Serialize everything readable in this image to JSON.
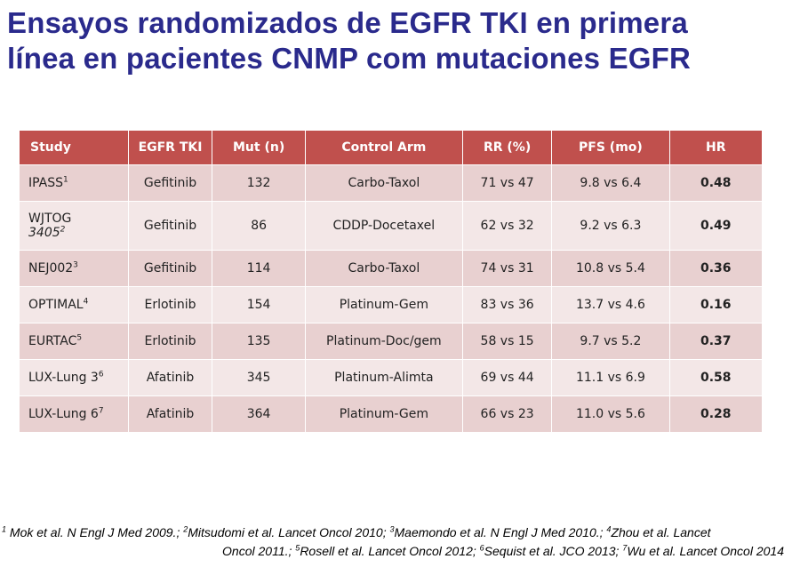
{
  "title": {
    "line1": "Ensayos randomizados de EGFR TKI en primera",
    "line2": "línea en pacientes CNMP com mutaciones EGFR"
  },
  "table": {
    "headers": [
      "Study",
      "EGFR TKI",
      "Mut (n)",
      "Control Arm",
      "RR  (%)",
      "PFS (mo)",
      "HR"
    ],
    "rows": [
      {
        "study": "IPASS",
        "study2": "",
        "ref": "1",
        "tki": "Gefitinib",
        "mut": "132",
        "control": "Carbo-Taxol",
        "rr": "71 vs 47",
        "pfs": "9.8 vs 6.4",
        "hr": "0.48"
      },
      {
        "study": "WJTOG",
        "study2": "3405",
        "ref": "2",
        "tki": "Gefitinib",
        "mut": "86",
        "control": "CDDP-Docetaxel",
        "rr": "62 vs 32",
        "pfs": "9.2 vs 6.3",
        "hr": "0.49"
      },
      {
        "study": "NEJ002",
        "study2": "",
        "ref": "3",
        "tki": "Gefitinib",
        "mut": "114",
        "control": "Carbo-Taxol",
        "rr": "74 vs 31",
        "pfs": "10.8 vs 5.4",
        "hr": "0.36"
      },
      {
        "study": "OPTIMAL",
        "study2": "",
        "ref": "4",
        "tki": "Erlotinib",
        "mut": "154",
        "control": "Platinum-Gem",
        "rr": "83 vs 36",
        "pfs": "13.7 vs 4.6",
        "hr": "0.16"
      },
      {
        "study": "EURTAC",
        "study2": "",
        "ref": "5",
        "tki": "Erlotinib",
        "mut": "135",
        "control": "Platinum-Doc/gem",
        "rr": "58 vs 15",
        "pfs": "9.7 vs 5.2",
        "hr": "0.37"
      },
      {
        "study": "LUX-Lung 3",
        "study2": "",
        "ref": "6",
        "tki": "Afatinib",
        "mut": "345",
        "control": "Platinum-Alimta",
        "rr": "69 vs 44",
        "pfs": "11.1 vs 6.9",
        "hr": "0.58"
      },
      {
        "study": "LUX-Lung 6",
        "study2": "",
        "ref": "7",
        "tki": "Afatinib",
        "mut": "364",
        "control": "Platinum-Gem",
        "rr": "66 vs 23",
        "pfs": "11.0 vs 5.6",
        "hr": "0.28"
      }
    ]
  },
  "footnotes": {
    "line1": [
      {
        "sup": "1",
        "text": " Mok et al. N Engl J Med 2009.; "
      },
      {
        "sup": "2",
        "text": "Mitsudomi et al. Lancet Oncol 2010; "
      },
      {
        "sup": "3",
        "text": "Maemondo et al. N Engl J Med 2010.; "
      },
      {
        "sup": "4",
        "text": "Zhou et al. Lancet"
      }
    ],
    "line2": [
      {
        "sup": "",
        "text": "Oncol 2011.; "
      },
      {
        "sup": "5",
        "text": "Rosell et al. Lancet Oncol 2012; "
      },
      {
        "sup": "6",
        "text": "Sequist et al. JCO 2013; "
      },
      {
        "sup": "7",
        "text": "Wu et al.  Lancet Oncol 2014"
      }
    ]
  },
  "colors": {
    "title": "#2a2a8c",
    "header_bg": "#c0504d",
    "row_dark": "#e8d0d0",
    "row_light": "#f3e7e7"
  }
}
